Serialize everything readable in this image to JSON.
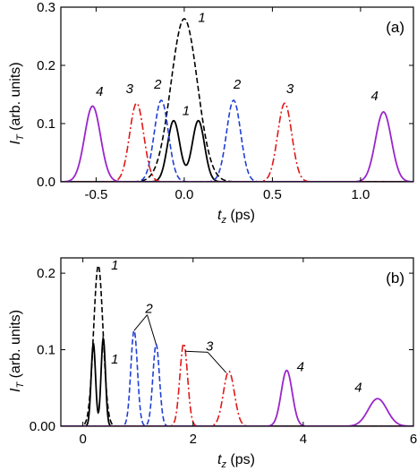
{
  "chart_data": [
    {
      "panel_label": "(a)",
      "type": "line",
      "xlabel_main": "t",
      "xlabel_sub": "z",
      "xlabel_unit": " (ps)",
      "ylabel_main": "I",
      "ylabel_sub": "T",
      "ylabel_unit": " (arb. units)",
      "xlim": [
        -0.7,
        1.3
      ],
      "ylim": [
        0,
        0.3
      ],
      "xticks": [
        -0.5,
        0.0,
        0.5,
        1.0
      ],
      "xtick_labels": [
        "-0.5",
        "0.0",
        "0.5",
        "1.0"
      ],
      "yticks": [
        0,
        0.1,
        0.2,
        0.3
      ],
      "ytick_labels": [
        "0.0",
        "0.1",
        "0.2",
        "0.3"
      ],
      "series": [
        {
          "label": "1",
          "style": "dashed",
          "color": "#000000",
          "pulses": [
            {
              "center": 0.0,
              "peak": 0.28,
              "width": 0.075
            }
          ]
        },
        {
          "label": "1",
          "style": "solid",
          "color": "#000000",
          "pulses": [
            {
              "center": -0.06,
              "peak": 0.105,
              "width": 0.035
            },
            {
              "center": 0.08,
              "peak": 0.105,
              "width": 0.035
            }
          ]
        },
        {
          "label": "2",
          "style": "dashed",
          "color": "#1f3fd6",
          "pulses": [
            {
              "center": -0.13,
              "peak": 0.14,
              "width": 0.04
            },
            {
              "center": 0.28,
              "peak": 0.14,
              "width": 0.04
            }
          ]
        },
        {
          "label": "3",
          "style": "dashdot",
          "color": "#e01818",
          "pulses": [
            {
              "center": -0.27,
              "peak": 0.135,
              "width": 0.04
            },
            {
              "center": 0.57,
              "peak": 0.135,
              "width": 0.04
            }
          ]
        },
        {
          "label": "4",
          "style": "solid",
          "color": "#9b26c9",
          "pulses": [
            {
              "center": -0.52,
              "peak": 0.13,
              "width": 0.045
            },
            {
              "center": 1.13,
              "peak": 0.12,
              "width": 0.045
            }
          ]
        }
      ],
      "annotations": [
        {
          "text": "1",
          "x": 0.1,
          "y": 0.275
        },
        {
          "text": "1",
          "x": 0.01,
          "y": 0.115
        },
        {
          "text": "2",
          "x": -0.15,
          "y": 0.16
        },
        {
          "text": "2",
          "x": 0.3,
          "y": 0.16
        },
        {
          "text": "3",
          "x": -0.31,
          "y": 0.152
        },
        {
          "text": "3",
          "x": 0.6,
          "y": 0.152
        },
        {
          "text": "4",
          "x": -0.48,
          "y": 0.148
        },
        {
          "text": "4",
          "x": 1.08,
          "y": 0.14
        }
      ]
    },
    {
      "panel_label": "(b)",
      "type": "line",
      "xlabel_main": "t",
      "xlabel_sub": "z",
      "xlabel_unit": " (ps)",
      "ylabel_main": "I",
      "ylabel_sub": "T",
      "ylabel_unit": " (arb. units)",
      "xlim": [
        -0.4,
        6.0
      ],
      "ylim": [
        0,
        0.22
      ],
      "xticks": [
        0,
        2,
        4,
        6
      ],
      "xtick_labels": [
        "0",
        "2",
        "4",
        "6"
      ],
      "yticks": [
        0,
        0.1,
        0.2
      ],
      "ytick_labels": [
        "0.00",
        "0.1",
        "0.2"
      ],
      "series": [
        {
          "label": "1",
          "style": "dashed",
          "color": "#000000",
          "pulses": [
            {
              "center": 0.28,
              "peak": 0.21,
              "width": 0.085
            }
          ]
        },
        {
          "label": "1",
          "style": "solid",
          "color": "#000000",
          "pulses": [
            {
              "center": 0.19,
              "peak": 0.108,
              "width": 0.04
            },
            {
              "center": 0.37,
              "peak": 0.115,
              "width": 0.04
            }
          ]
        },
        {
          "label": "2",
          "style": "dashed",
          "color": "#1f3fd6",
          "pulses": [
            {
              "center": 0.93,
              "peak": 0.125,
              "width": 0.06
            },
            {
              "center": 1.33,
              "peak": 0.107,
              "width": 0.06
            }
          ]
        },
        {
          "label": "3",
          "style": "dashdot",
          "color": "#e01818",
          "pulses": [
            {
              "center": 1.83,
              "peak": 0.108,
              "width": 0.07
            },
            {
              "center": 2.65,
              "peak": 0.072,
              "width": 0.1
            }
          ]
        },
        {
          "label": "4",
          "style": "solid",
          "color": "#9b26c9",
          "pulses": [
            {
              "center": 3.7,
              "peak": 0.073,
              "width": 0.1
            },
            {
              "center": 5.35,
              "peak": 0.036,
              "width": 0.17
            }
          ]
        }
      ],
      "annotations": [
        {
          "text": "1",
          "x": 0.58,
          "y": 0.205
        },
        {
          "text": "1",
          "x": 0.58,
          "y": 0.082
        },
        {
          "text": "2",
          "x": 1.2,
          "y": 0.148
        },
        {
          "text": "3",
          "x": 2.3,
          "y": 0.099
        },
        {
          "text": "4",
          "x": 3.95,
          "y": 0.072
        },
        {
          "text": "4",
          "x": 5.0,
          "y": 0.045
        }
      ],
      "callouts": [
        {
          "from": [
            1.2,
            0.148
          ],
          "to": [
            0.93,
            0.125
          ]
        },
        {
          "from": [
            1.2,
            0.148
          ],
          "to": [
            1.33,
            0.107
          ]
        },
        {
          "from": [
            2.3,
            0.099
          ],
          "to": [
            1.86,
            0.098
          ]
        },
        {
          "from": [
            2.3,
            0.099
          ],
          "to": [
            2.6,
            0.07
          ]
        }
      ]
    }
  ]
}
